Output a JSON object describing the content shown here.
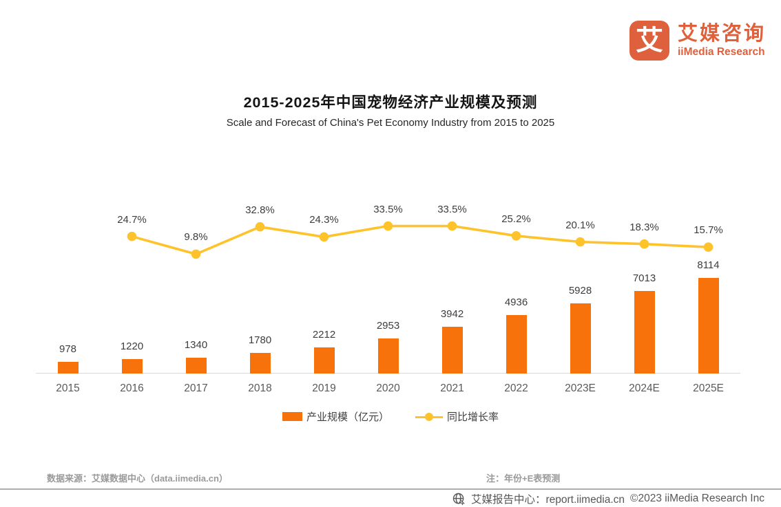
{
  "brand": {
    "logo_char": "艾",
    "name_cn": "艾媒咨询",
    "name_en": "iiMedia Research",
    "brand_color": "#DF603C"
  },
  "title": "2015-2025年中国宠物经济产业规模及预测",
  "subtitle": "Scale and Forecast of China's Pet Economy Industry from 2015 to 2025",
  "chart_data": {
    "type": "bar",
    "combo": "bar+line",
    "categories": [
      "2015",
      "2016",
      "2017",
      "2018",
      "2019",
      "2020",
      "2021",
      "2022",
      "2023E",
      "2024E",
      "2025E"
    ],
    "series": [
      {
        "name": "产业规模（亿元）",
        "type": "bar",
        "color": "#F8720B",
        "values": [
          978,
          1220,
          1340,
          1780,
          2212,
          2953,
          3942,
          4936,
          5928,
          7013,
          8114
        ]
      },
      {
        "name": "同比增长率",
        "type": "line",
        "color": "#FEC32B",
        "unit": "%",
        "values": [
          null,
          24.7,
          9.8,
          32.8,
          24.3,
          33.5,
          33.5,
          25.2,
          20.1,
          18.3,
          15.7
        ]
      }
    ],
    "title": "2015-2025年中国宠物经济产业规模及预测",
    "xlabel": "",
    "ylabel": "",
    "grid": false,
    "legend_position": "bottom",
    "data_labels": true
  },
  "legend": {
    "items": [
      {
        "label": "产业规模（亿元）",
        "swatch": "bar"
      },
      {
        "label": "同比增长率",
        "swatch": "line"
      }
    ]
  },
  "footer": {
    "source": "数据来源：艾媒数据中心（data.iimedia.cn）",
    "note": "注：年份+E表预测",
    "report_center": "艾媒报告中心：report.iimedia.cn",
    "copyright": "©2023  iiMedia Research Inc"
  }
}
